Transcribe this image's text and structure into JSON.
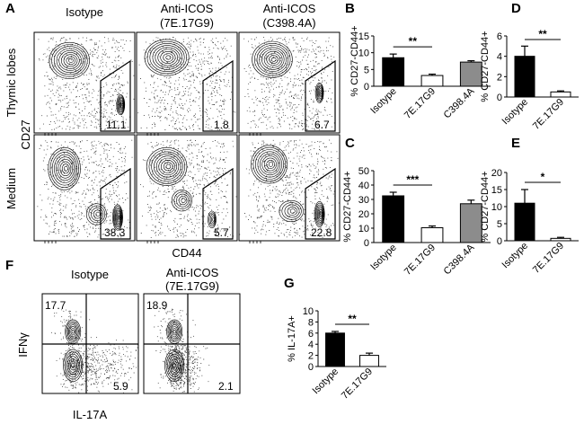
{
  "panels": {
    "A": {
      "label": "A",
      "columns": [
        "Isotype",
        "Anti-ICOS",
        "Anti-ICOS"
      ],
      "column_sub": [
        "",
        "(7E.17G9)",
        "(C398.4A)"
      ],
      "rows": [
        "Thymic lobes",
        "Medium"
      ],
      "ylabel": "CD27",
      "xlabel": "CD44",
      "gates": [
        [
          "11.1",
          "1.8",
          "6.7"
        ],
        [
          "38.3",
          "5.7",
          "22.8"
        ]
      ]
    },
    "F": {
      "label": "F",
      "columns": [
        "Isotype",
        "Anti-ICOS"
      ],
      "column_sub": [
        "",
        "(7E.17G9)"
      ],
      "ylabel": "IFNγ",
      "xlabel": "IL-17A",
      "quadrants": [
        [
          "17.7",
          "5.9"
        ],
        [
          "18.9",
          "2.1"
        ]
      ]
    }
  },
  "chart_data": [
    {
      "panel": "B",
      "type": "bar",
      "categories": [
        "Isotype",
        "7E.17G9",
        "C398.4A"
      ],
      "values": [
        8.5,
        3.2,
        7.2
      ],
      "errors": [
        1.1,
        0.4,
        0.4
      ],
      "colors": [
        "#000000",
        "#ffffff",
        "#8c8c8c"
      ],
      "ylabel": "% CD27-CD44+",
      "ylim": [
        0,
        15
      ],
      "yticks": [
        "0",
        "5",
        "10",
        "15"
      ],
      "significance": "**"
    },
    {
      "panel": "C",
      "type": "bar",
      "categories": [
        "Isotype",
        "7E.17G9",
        "C398.4A"
      ],
      "values": [
        32.5,
        10.3,
        27.0
      ],
      "errors": [
        2.5,
        1.2,
        2.5
      ],
      "colors": [
        "#000000",
        "#ffffff",
        "#8c8c8c"
      ],
      "ylabel": "% CD27-CD44+",
      "ylim": [
        0,
        50
      ],
      "yticks": [
        "0",
        "10",
        "20",
        "30",
        "40",
        "50"
      ],
      "significance": "***"
    },
    {
      "panel": "D",
      "type": "bar",
      "categories": [
        "Isotype",
        "7E.17G9"
      ],
      "values": [
        4.0,
        0.5
      ],
      "errors": [
        1.0,
        0.1
      ],
      "colors": [
        "#000000",
        "#ffffff"
      ],
      "ylabel": "% CD27-CD44+",
      "ylim": [
        0,
        6
      ],
      "yticks": [
        "0",
        "2",
        "4",
        "6"
      ],
      "significance": "**"
    },
    {
      "panel": "E",
      "type": "bar",
      "categories": [
        "Isotype",
        "7E.17G9"
      ],
      "values": [
        11.0,
        0.7
      ],
      "errors": [
        4.0,
        0.3
      ],
      "colors": [
        "#000000",
        "#ffffff"
      ],
      "ylabel": "% CD27-CD44+",
      "ylim": [
        0,
        20
      ],
      "yticks": [
        "0",
        "5",
        "10",
        "15",
        "20"
      ],
      "significance": "*"
    },
    {
      "panel": "G",
      "type": "bar",
      "categories": [
        "Isotype",
        "7E.17G9"
      ],
      "values": [
        6.0,
        2.0
      ],
      "errors": [
        0.3,
        0.4
      ],
      "colors": [
        "#000000",
        "#ffffff"
      ],
      "ylabel": "% IL-17A+",
      "ylim": [
        0,
        10
      ],
      "yticks": [
        "0",
        "2",
        "4",
        "6",
        "8",
        "10"
      ],
      "significance": "**"
    }
  ]
}
